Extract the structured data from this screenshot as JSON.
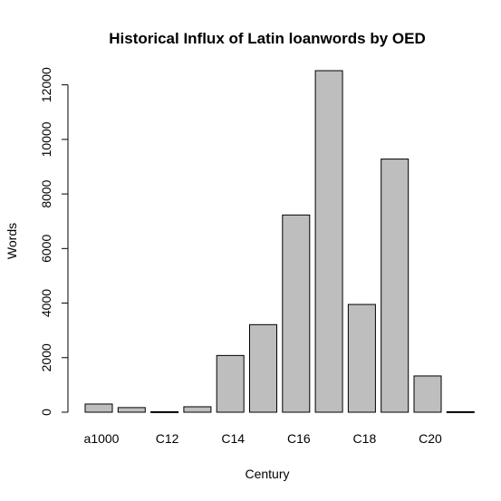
{
  "chart_data": {
    "type": "bar",
    "title": "Historical Influx of Latin loanwords by OED",
    "xlabel": "Century",
    "ylabel": "Words",
    "categories": [
      "a1000",
      "C11",
      "C12",
      "C13",
      "C14",
      "C15",
      "C16",
      "C17",
      "C18",
      "C19",
      "C20",
      "C21"
    ],
    "category_labels_shown": [
      "a1000",
      "",
      "C12",
      "",
      "C14",
      "",
      "C16",
      "",
      "C18",
      "",
      "C20",
      ""
    ],
    "values": [
      300,
      170,
      20,
      200,
      2080,
      3210,
      7230,
      12520,
      3950,
      9280,
      1330,
      20
    ],
    "ylim": [
      0,
      12520
    ],
    "yticks": [
      0,
      2000,
      4000,
      6000,
      8000,
      10000,
      12000
    ],
    "bar_color": "#bebebe",
    "grid": false,
    "legend": "none"
  }
}
